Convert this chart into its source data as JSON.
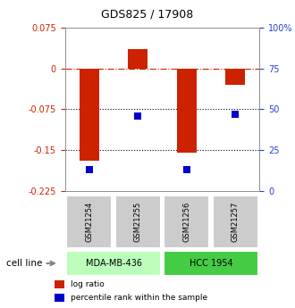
{
  "title": "GDS825 / 17908",
  "samples": [
    "GSM21254",
    "GSM21255",
    "GSM21256",
    "GSM21257"
  ],
  "log_ratio": [
    -0.17,
    0.035,
    -0.155,
    -0.03
  ],
  "percentile_rank": [
    13,
    46,
    13,
    47
  ],
  "cell_lines": [
    {
      "label": "MDA-MB-436",
      "n_samples": 2,
      "color": "#bbffbb"
    },
    {
      "label": "HCC 1954",
      "n_samples": 2,
      "color": "#44cc44"
    }
  ],
  "ylim_left": [
    -0.225,
    0.075
  ],
  "ylim_right": [
    0,
    100
  ],
  "yticks_left": [
    0.075,
    0,
    -0.075,
    -0.15,
    -0.225
  ],
  "yticks_right": [
    100,
    75,
    50,
    25,
    0
  ],
  "bar_color": "#cc2200",
  "dot_color": "#0000cc",
  "bar_width": 0.4,
  "dot_size": 40,
  "background_color": "#ffffff",
  "cell_line_label": "cell line",
  "legend_log_ratio": "log ratio",
  "legend_percentile": "percentile rank within the sample",
  "sample_box_color": "#cccccc",
  "title_fontsize": 9,
  "tick_fontsize": 7,
  "label_fontsize": 7
}
